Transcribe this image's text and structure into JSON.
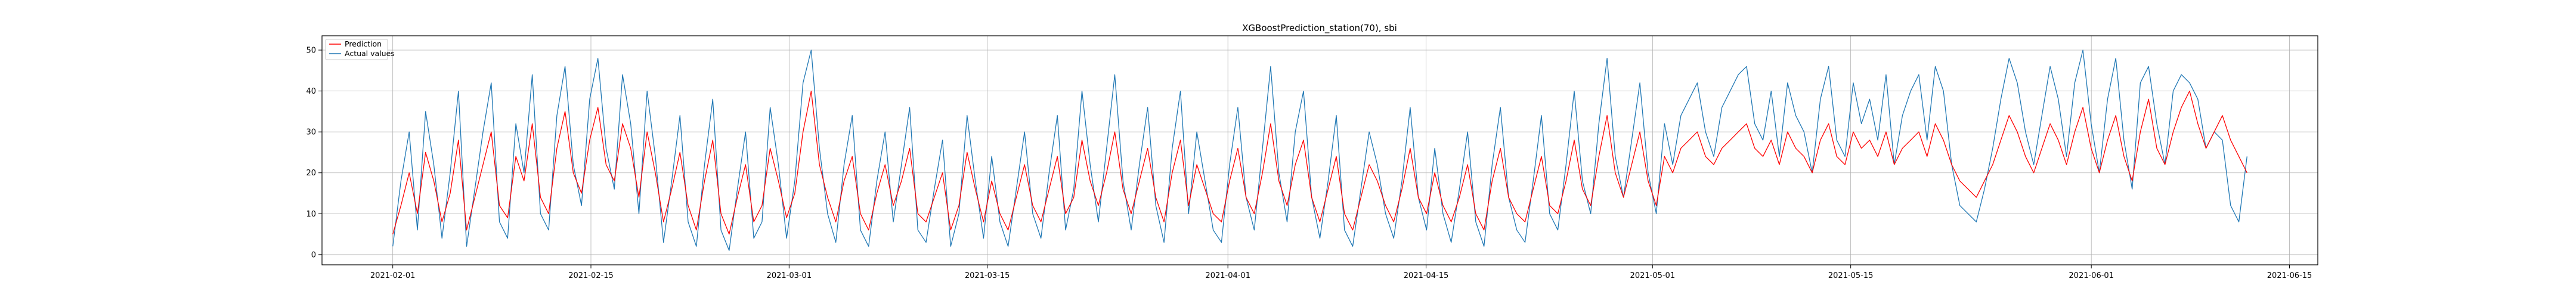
{
  "chart_data": {
    "type": "line",
    "title": "XGBoostPrediction_station(70), sbi",
    "xlabel": "",
    "ylabel": "",
    "x_start": "2021-02-01",
    "x_end": "2021-06-12",
    "xlim": [
      "2021-01-27",
      "2021-06-17"
    ],
    "ylim": [
      -2.5,
      53.5
    ],
    "x_ticks": [
      "2021-02-01",
      "2021-02-15",
      "2021-03-01",
      "2021-03-15",
      "2021-04-01",
      "2021-04-15",
      "2021-05-01",
      "2021-05-15",
      "2021-06-01",
      "2021-06-15"
    ],
    "y_ticks": [
      0,
      10,
      20,
      30,
      40,
      50
    ],
    "grid": true,
    "legend_position": "top-left",
    "series": [
      {
        "name": "Prediction",
        "color": "#ff0000",
        "values": [
          5,
          12,
          20,
          10,
          25,
          18,
          8,
          15,
          28,
          6,
          14,
          22,
          30,
          12,
          9,
          24,
          18,
          32,
          14,
          10,
          26,
          35,
          20,
          15,
          28,
          36,
          22,
          18,
          32,
          26,
          14,
          30,
          20,
          8,
          16,
          25,
          12,
          6,
          18,
          28,
          10,
          5,
          14,
          22,
          8,
          12,
          26,
          18,
          9,
          15,
          30,
          40,
          22,
          14,
          8,
          18,
          24,
          10,
          6,
          15,
          22,
          12,
          18,
          26,
          10,
          8,
          14,
          20,
          6,
          12,
          25,
          16,
          8,
          18,
          10,
          6,
          14,
          22,
          12,
          8,
          16,
          24,
          10,
          14,
          28,
          18,
          12,
          20,
          30,
          16,
          10,
          18,
          26,
          14,
          8,
          20,
          28,
          12,
          22,
          16,
          10,
          8,
          18,
          26,
          14,
          10,
          20,
          32,
          18,
          12,
          22,
          28,
          14,
          8,
          16,
          24,
          10,
          6,
          14,
          22,
          18,
          12,
          8,
          16,
          26,
          14,
          10,
          20,
          12,
          8,
          14,
          22,
          10,
          6,
          18,
          26,
          14,
          10,
          8,
          16,
          24,
          12,
          10,
          18,
          28,
          16,
          12,
          24,
          34,
          20,
          14,
          22,
          30,
          18,
          12,
          24,
          20,
          26,
          28,
          30,
          24,
          22,
          26,
          28,
          30,
          32,
          26,
          24,
          28,
          22,
          30,
          26,
          24,
          20,
          28,
          32,
          24,
          22,
          30,
          26,
          28,
          24,
          30,
          22,
          26,
          28,
          30,
          24,
          32,
          28,
          22,
          18,
          16,
          14,
          18,
          22,
          28,
          34,
          30,
          24,
          20,
          26,
          32,
          28,
          22,
          30,
          36,
          26,
          20,
          28,
          34,
          24,
          18,
          30,
          38,
          26,
          22,
          30,
          36,
          40,
          32,
          26,
          30,
          34,
          28,
          24,
          20
        ]
      },
      {
        "name": "Actual values",
        "color": "#1f77b4",
        "values": [
          2,
          18,
          30,
          6,
          35,
          22,
          4,
          20,
          40,
          2,
          16,
          30,
          42,
          8,
          4,
          32,
          20,
          44,
          10,
          6,
          34,
          46,
          22,
          12,
          38,
          48,
          26,
          16,
          44,
          32,
          10,
          40,
          24,
          3,
          18,
          34,
          8,
          2,
          22,
          38,
          6,
          1,
          16,
          30,
          4,
          8,
          36,
          22,
          4,
          18,
          42,
          50,
          26,
          10,
          3,
          22,
          34,
          6,
          2,
          18,
          30,
          8,
          22,
          36,
          6,
          3,
          16,
          28,
          2,
          10,
          34,
          18,
          4,
          24,
          8,
          2,
          16,
          30,
          10,
          4,
          20,
          34,
          6,
          16,
          40,
          22,
          8,
          26,
          44,
          18,
          6,
          22,
          36,
          12,
          3,
          26,
          40,
          10,
          30,
          18,
          6,
          3,
          22,
          36,
          14,
          6,
          26,
          46,
          20,
          8,
          30,
          40,
          14,
          4,
          18,
          34,
          6,
          2,
          16,
          30,
          22,
          10,
          4,
          18,
          36,
          14,
          6,
          26,
          10,
          3,
          16,
          30,
          8,
          2,
          22,
          36,
          14,
          6,
          3,
          18,
          34,
          10,
          6,
          22,
          40,
          18,
          10,
          32,
          48,
          24,
          14,
          28,
          42,
          20,
          10,
          32,
          22,
          34,
          38,
          42,
          30,
          24,
          36,
          40,
          44,
          46,
          32,
          28,
          40,
          24,
          42,
          34,
          30,
          20,
          38,
          46,
          28,
          24,
          42,
          32,
          38,
          28,
          44,
          22,
          34,
          40,
          44,
          28,
          46,
          40,
          22,
          12,
          10,
          8,
          16,
          26,
          38,
          48,
          42,
          30,
          22,
          34,
          46,
          38,
          24,
          42,
          50,
          32,
          20,
          38,
          48,
          28,
          16,
          42,
          46,
          32,
          22,
          40,
          44,
          42,
          38,
          26,
          30,
          28,
          12,
          8,
          24
        ]
      }
    ]
  }
}
